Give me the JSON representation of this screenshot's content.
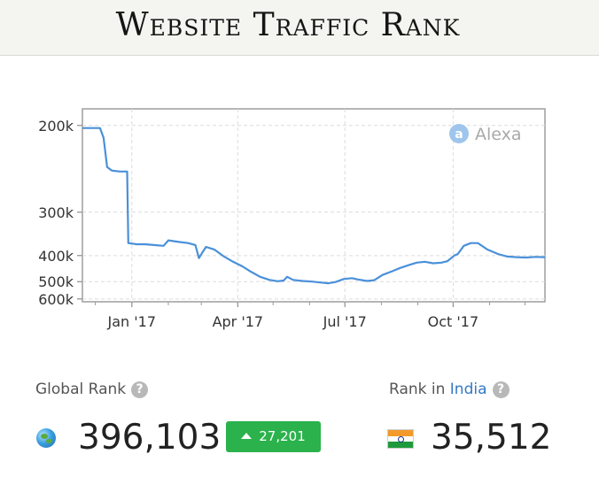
{
  "banner": {
    "title": "Website Traffic Rank"
  },
  "chart_data": {
    "type": "line",
    "watermark": "Alexa",
    "y_axis": {
      "reversed": true,
      "ticks": [
        200000,
        300000,
        400000,
        500000,
        600000
      ],
      "tick_labels": [
        "200k",
        "300k",
        "400k",
        "500k",
        "600k"
      ],
      "range": [
        188000,
        620000
      ]
    },
    "x_axis": {
      "tick_labels": [
        "Jan '17",
        "Apr '17",
        "Jul '17",
        "Oct '17"
      ],
      "tick_dates": [
        "2017-01-01",
        "2017-04-01",
        "2017-07-01",
        "2017-10-01"
      ],
      "range": [
        "2016-11-20",
        "2017-12-18"
      ]
    },
    "grid": true,
    "series": [
      {
        "color": "#4a90d9",
        "points": [
          [
            "2016-11-20",
            202000
          ],
          [
            "2016-11-28",
            202000
          ],
          [
            "2016-12-05",
            202000
          ],
          [
            "2016-12-08",
            210000
          ],
          [
            "2016-12-11",
            238000
          ],
          [
            "2016-12-15",
            242000
          ],
          [
            "2016-12-22",
            243000
          ],
          [
            "2016-12-28",
            243000
          ],
          [
            "2016-12-29",
            365000
          ],
          [
            "2017-01-05",
            368000
          ],
          [
            "2017-01-12",
            368000
          ],
          [
            "2017-01-20",
            370000
          ],
          [
            "2017-01-28",
            372000
          ],
          [
            "2017-02-01",
            358000
          ],
          [
            "2017-02-10",
            362000
          ],
          [
            "2017-02-18",
            365000
          ],
          [
            "2017-02-24",
            370000
          ],
          [
            "2017-02-27",
            408000
          ],
          [
            "2017-03-02",
            390000
          ],
          [
            "2017-03-05",
            375000
          ],
          [
            "2017-03-12",
            382000
          ],
          [
            "2017-03-20",
            402000
          ],
          [
            "2017-03-28",
            420000
          ],
          [
            "2017-04-05",
            436000
          ],
          [
            "2017-04-12",
            456000
          ],
          [
            "2017-04-20",
            478000
          ],
          [
            "2017-04-28",
            492000
          ],
          [
            "2017-05-05",
            498000
          ],
          [
            "2017-05-10",
            495000
          ],
          [
            "2017-05-13",
            478000
          ],
          [
            "2017-05-18",
            492000
          ],
          [
            "2017-05-26",
            497000
          ],
          [
            "2017-06-03",
            500000
          ],
          [
            "2017-06-10",
            504000
          ],
          [
            "2017-06-17",
            508000
          ],
          [
            "2017-06-23",
            502000
          ],
          [
            "2017-06-30",
            488000
          ],
          [
            "2017-07-07",
            484000
          ],
          [
            "2017-07-12",
            490000
          ],
          [
            "2017-07-20",
            497000
          ],
          [
            "2017-07-26",
            493000
          ],
          [
            "2017-08-02",
            470000
          ],
          [
            "2017-08-10",
            455000
          ],
          [
            "2017-08-17",
            442000
          ],
          [
            "2017-08-24",
            432000
          ],
          [
            "2017-08-31",
            423000
          ],
          [
            "2017-09-07",
            420000
          ],
          [
            "2017-09-14",
            425000
          ],
          [
            "2017-09-21",
            423000
          ],
          [
            "2017-09-26",
            418000
          ],
          [
            "2017-10-02",
            400000
          ],
          [
            "2017-10-05",
            395000
          ],
          [
            "2017-10-10",
            372000
          ],
          [
            "2017-10-16",
            365000
          ],
          [
            "2017-10-22",
            365000
          ],
          [
            "2017-10-30",
            382000
          ],
          [
            "2017-11-08",
            395000
          ],
          [
            "2017-11-16",
            403000
          ],
          [
            "2017-11-24",
            405000
          ],
          [
            "2017-12-02",
            406000
          ],
          [
            "2017-12-10",
            404000
          ],
          [
            "2017-12-18",
            405000
          ]
        ]
      }
    ]
  },
  "stats": {
    "global": {
      "label": "Global Rank",
      "help": "?",
      "value": "396,103",
      "delta": "27,201",
      "delta_direction": "up",
      "delta_color": "#2bb24c",
      "icon": "globe-icon"
    },
    "country": {
      "label_prefix": "Rank in",
      "country": "India",
      "help": "?",
      "value": "35,512",
      "icon": "india-flag-icon"
    }
  }
}
